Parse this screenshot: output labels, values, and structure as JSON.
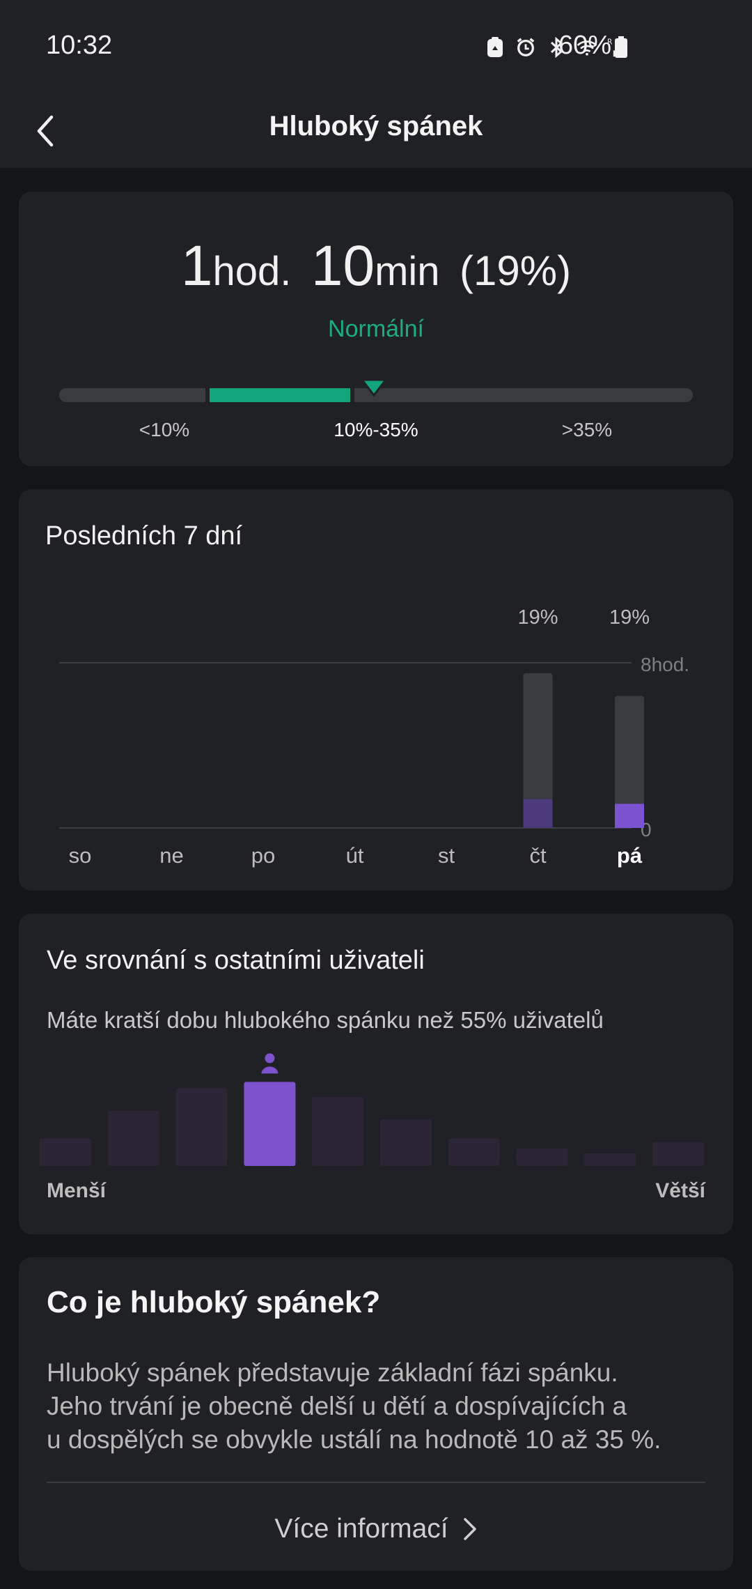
{
  "status_bar": {
    "time": "10:32",
    "battery": "60%",
    "icons": [
      "recycle-icon",
      "alarm-icon",
      "bluetooth-icon",
      "wifi-icon",
      "signal-icon",
      "battery-icon"
    ]
  },
  "app_bar": {
    "title": "Hluboký spánek"
  },
  "summary": {
    "hours": "1",
    "hours_unit": "hod.",
    "minutes": "10",
    "minutes_unit": "min",
    "percent": "(19%)",
    "status": "Normální",
    "range_labels": [
      "<10%",
      "10%-35%",
      ">35%"
    ],
    "status_color": "#13a57a"
  },
  "week": {
    "title": "Posledních 7 dní"
  },
  "chart_data": {
    "type": "bar",
    "categories": [
      "so",
      "ne",
      "po",
      "út",
      "st",
      "čt",
      "pá"
    ],
    "series": [
      {
        "values": [
          null,
          null,
          null,
          null,
          null,
          7.5,
          6.4
        ]
      },
      {
        "values": [
          null,
          null,
          null,
          null,
          null,
          1.4,
          1.17
        ]
      }
    ],
    "bar_labels": [
      null,
      null,
      null,
      null,
      null,
      "19%",
      "19%"
    ],
    "y_tick_labels": [
      "8hod.",
      "0"
    ],
    "ylim": [
      0,
      8
    ],
    "selected": "pá",
    "colors": {
      "total": "#3a3b3e",
      "deep": "#7b52d0",
      "deep_past": "#4d3a7c"
    }
  },
  "compare": {
    "title": "Ve srovnání s ostatními uživateli",
    "subtitle": "Máte kratší dobu hlubokého spánku než 55% uživatelů",
    "left_label": "Menší",
    "right_label": "Větší",
    "distribution": [
      0.22,
      0.44,
      0.62,
      0.67,
      0.55,
      0.37,
      0.22,
      0.14,
      0.1,
      0.19
    ],
    "user_index": 3,
    "colors": {
      "bar": "#2b2535",
      "user": "#7e52cf"
    }
  },
  "info": {
    "title": "Co je hluboký spánek?",
    "lines": [
      "Hluboký spánek představuje základní fázi spánku.",
      "Jeho trvání je obecně delší u dětí a dospívajících a",
      "u dospělých se obvykle ustálí na hodnotě 10 až 35 %."
    ],
    "more_label": "Více informací"
  }
}
